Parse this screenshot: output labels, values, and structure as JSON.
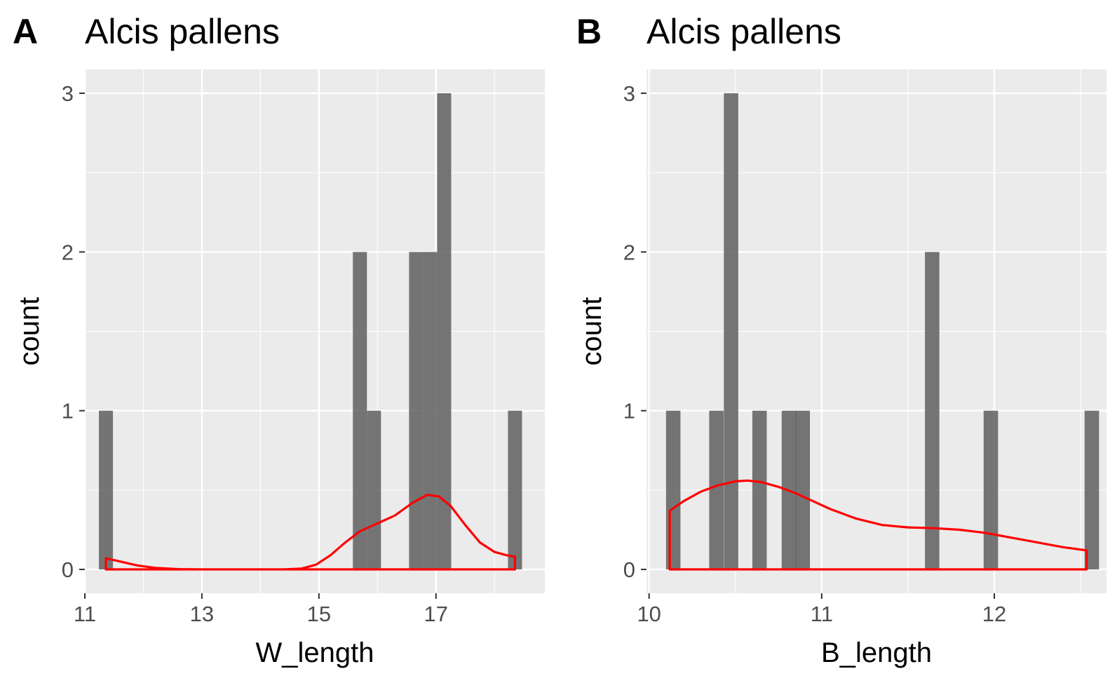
{
  "chart_data": [
    {
      "tag": "A",
      "type": "bar",
      "title": "Alcis pallens",
      "xlabel": "W_length",
      "ylabel": "count",
      "xlim": [
        11.0,
        18.86
      ],
      "ylim": [
        -0.15,
        3.15
      ],
      "xticks": [
        11,
        13,
        15,
        17
      ],
      "xtick_labels": [
        "11",
        "13",
        "15",
        "17"
      ],
      "yticks": [
        0,
        1,
        2,
        3
      ],
      "ytick_labels": [
        "0",
        "1",
        "2",
        "3"
      ],
      "grid": true,
      "bin_width": 0.24,
      "bins": [
        {
          "x": 11.36,
          "count": 1
        },
        {
          "x": 15.7,
          "count": 2
        },
        {
          "x": 15.94,
          "count": 1
        },
        {
          "x": 16.66,
          "count": 2
        },
        {
          "x": 16.9,
          "count": 2
        },
        {
          "x": 17.14,
          "count": 3
        },
        {
          "x": 18.35,
          "count": 1
        }
      ],
      "density": {
        "color": "#FF0000",
        "x": [
          11.36,
          11.6,
          11.9,
          12.2,
          12.6,
          13.0,
          13.5,
          14.0,
          14.4,
          14.7,
          14.95,
          15.2,
          15.45,
          15.7,
          16.0,
          16.3,
          16.6,
          16.85,
          17.05,
          17.25,
          17.5,
          17.75,
          18.0,
          18.2,
          18.35
        ],
        "y": [
          0.07,
          0.05,
          0.025,
          0.01,
          0.002,
          0.0,
          0.0,
          0.0,
          0.0,
          0.005,
          0.03,
          0.09,
          0.17,
          0.24,
          0.29,
          0.34,
          0.42,
          0.47,
          0.46,
          0.4,
          0.28,
          0.17,
          0.11,
          0.09,
          0.08
        ]
      }
    },
    {
      "tag": "B",
      "type": "bar",
      "title": "Alcis pallens",
      "xlabel": "B_length",
      "ylabel": "count",
      "xlim": [
        9.985,
        12.65
      ],
      "ylim": [
        -0.15,
        3.15
      ],
      "xticks": [
        10,
        11,
        12
      ],
      "xtick_labels": [
        "10",
        "11",
        "12"
      ],
      "yticks": [
        0,
        1,
        2,
        3
      ],
      "ytick_labels": [
        "0",
        "1",
        "2",
        "3"
      ],
      "grid": true,
      "bin_width": 0.0835,
      "bins": [
        {
          "x": 10.14,
          "count": 1
        },
        {
          "x": 10.39,
          "count": 1
        },
        {
          "x": 10.475,
          "count": 3
        },
        {
          "x": 10.64,
          "count": 1
        },
        {
          "x": 10.81,
          "count": 1
        },
        {
          "x": 10.89,
          "count": 1
        },
        {
          "x": 11.64,
          "count": 2
        },
        {
          "x": 11.98,
          "count": 1
        },
        {
          "x": 12.565,
          "count": 1
        }
      ],
      "density": {
        "color": "#FF0000",
        "x": [
          10.12,
          10.2,
          10.3,
          10.4,
          10.5,
          10.57,
          10.65,
          10.75,
          10.85,
          10.95,
          11.05,
          11.2,
          11.35,
          11.5,
          11.65,
          11.8,
          11.95,
          12.1,
          12.25,
          12.4,
          12.535
        ],
        "y": [
          0.37,
          0.43,
          0.49,
          0.53,
          0.555,
          0.56,
          0.55,
          0.52,
          0.48,
          0.43,
          0.38,
          0.32,
          0.28,
          0.265,
          0.26,
          0.25,
          0.23,
          0.2,
          0.17,
          0.14,
          0.12
        ]
      }
    }
  ]
}
